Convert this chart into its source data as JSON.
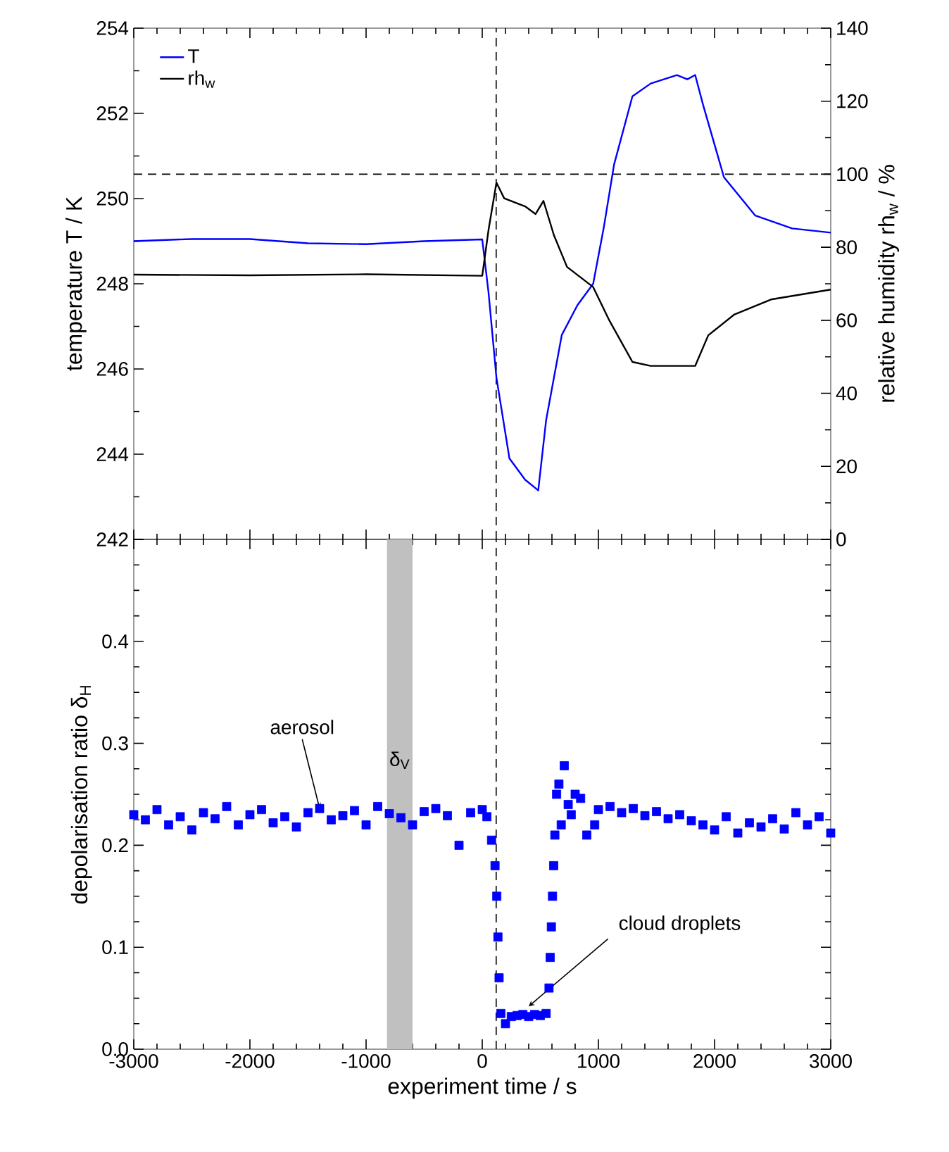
{
  "chart_data": [
    {
      "type": "line",
      "xlim": [
        -3000,
        3000
      ],
      "xticks": [
        -3000,
        -2000,
        -1000,
        0,
        1000,
        2000,
        3000
      ],
      "ylim": [
        242,
        254
      ],
      "yticks": [
        242,
        244,
        246,
        248,
        250,
        252,
        254
      ],
      "y2lim": [
        0,
        140
      ],
      "y2ticks": [
        0,
        20,
        40,
        60,
        80,
        100,
        120,
        140
      ],
      "ylabel": "temperature T / K",
      "y2label": "relative humidity rh$_{w}$ / %",
      "tick_labels": "y",
      "legend": "top left",
      "series": [
        {
          "name": "T",
          "color": "#0000ff",
          "x": [
            -3000,
            -2500,
            -2000,
            -1500,
            -1000,
            -500,
            0,
            54,
            122,
            234,
            369,
            482,
            550,
            685,
            820,
            955,
            1045,
            1135,
            1293,
            1450,
            1676,
            1766,
            1833,
            1901,
            2081,
            2351,
            2667,
            3000
          ],
          "values": [
            249.0,
            249.05,
            249.05,
            248.95,
            248.93,
            249.0,
            249.04,
            247.8,
            245.8,
            243.9,
            243.4,
            243.15,
            244.8,
            246.8,
            247.5,
            248.0,
            249.3,
            250.8,
            252.4,
            252.7,
            252.9,
            252.8,
            252.9,
            252.2,
            250.5,
            249.6,
            249.3,
            249.2
          ]
        },
        {
          "name": "rh$_{w}$",
          "color": "#000000",
          "axis": "y2",
          "x": [
            -3000,
            -2000,
            -1000,
            0,
            54,
            122,
            189,
            369,
            459,
            527,
            617,
            730,
            955,
            1090,
            1293,
            1450,
            1833,
            1946,
            2171,
            2486,
            3000
          ],
          "values": [
            72.5,
            72.3,
            72.6,
            72.2,
            84.7,
            97.7,
            93.4,
            91.2,
            89.1,
            92.7,
            83.3,
            74.6,
            69.1,
            60.2,
            48.6,
            47.5,
            47.5,
            55.9,
            61.6,
            65.7,
            68.4
          ]
        }
      ],
      "ref_lines": [
        {
          "axis": "x",
          "value": 120,
          "line_style": "dashed"
        },
        {
          "axis": "y2",
          "value": 100,
          "line_style": "dashed"
        }
      ]
    },
    {
      "type": "scatter",
      "marker": "square",
      "xlim": [
        -3000,
        3000
      ],
      "xticks": [
        -3000,
        -2000,
        -1000,
        0,
        1000,
        2000,
        3000
      ],
      "ylim": [
        0,
        0.5
      ],
      "yticks": [
        {
          "value": 0,
          "label": "0.0"
        },
        0.1,
        0.2,
        0.3,
        0.4,
        {
          "value": 0.5,
          "label": null
        }
      ],
      "xlabel": "experiment time / s",
      "ylabel": "depolarisation ratio δ$_{H}$",
      "series": [
        {
          "color": "#0000ff",
          "x": [
            -3000,
            -2900,
            -2800,
            -2700,
            -2600,
            -2500,
            -2400,
            -2300,
            -2200,
            -2100,
            -2000,
            -1900,
            -1800,
            -1700,
            -1600,
            -1500,
            -1400,
            -1300,
            -1200,
            -1100,
            -1000,
            -900,
            -800,
            -700,
            -600,
            -500,
            -400,
            -300,
            -200,
            -100,
            0,
            40,
            80,
            110,
            125,
            135,
            145,
            160,
            200,
            250,
            300,
            350,
            400,
            450,
            500,
            550,
            575,
            585,
            595,
            605,
            615,
            625,
            640,
            660,
            680,
            706,
            740,
            766,
            800,
            847,
            900,
            968,
            1000,
            1100,
            1200,
            1300,
            1400,
            1500,
            1600,
            1700,
            1800,
            1900,
            2000,
            2100,
            2200,
            2300,
            2400,
            2500,
            2600,
            2700,
            2800,
            2900,
            3000
          ],
          "values": [
            0.23,
            0.225,
            0.235,
            0.22,
            0.228,
            0.215,
            0.232,
            0.226,
            0.238,
            0.22,
            0.23,
            0.235,
            0.222,
            0.228,
            0.218,
            0.232,
            0.236,
            0.225,
            0.229,
            0.234,
            0.22,
            0.238,
            0.231,
            0.227,
            0.22,
            0.233,
            0.236,
            0.229,
            0.2,
            0.232,
            0.235,
            0.228,
            0.205,
            0.18,
            0.15,
            0.11,
            0.07,
            0.035,
            0.025,
            0.032,
            0.033,
            0.034,
            0.032,
            0.034,
            0.033,
            0.035,
            0.06,
            0.09,
            0.12,
            0.15,
            0.18,
            0.21,
            0.25,
            0.26,
            0.22,
            0.278,
            0.24,
            0.23,
            0.25,
            0.246,
            0.21,
            0.22,
            0.235,
            0.238,
            0.232,
            0.236,
            0.229,
            0.233,
            0.226,
            0.23,
            0.224,
            0.22,
            0.215,
            0.228,
            0.212,
            0.222,
            0.218,
            0.226,
            0.216,
            0.232,
            0.22,
            0.228,
            0.212
          ]
        }
      ],
      "ref_lines": [
        {
          "axis": "x",
          "value": 120,
          "line_style": "dashed"
        }
      ],
      "bands": [
        {
          "axis": "x",
          "from": -820,
          "to": -600,
          "label": "δ$_{V}$",
          "color": "#c0c0c0"
        }
      ],
      "annotations": [
        {
          "text": "aerosol",
          "x": -1400,
          "y": 0.236
        },
        {
          "text": "cloud droplets",
          "x": 400,
          "y": 0.042
        }
      ]
    }
  ]
}
